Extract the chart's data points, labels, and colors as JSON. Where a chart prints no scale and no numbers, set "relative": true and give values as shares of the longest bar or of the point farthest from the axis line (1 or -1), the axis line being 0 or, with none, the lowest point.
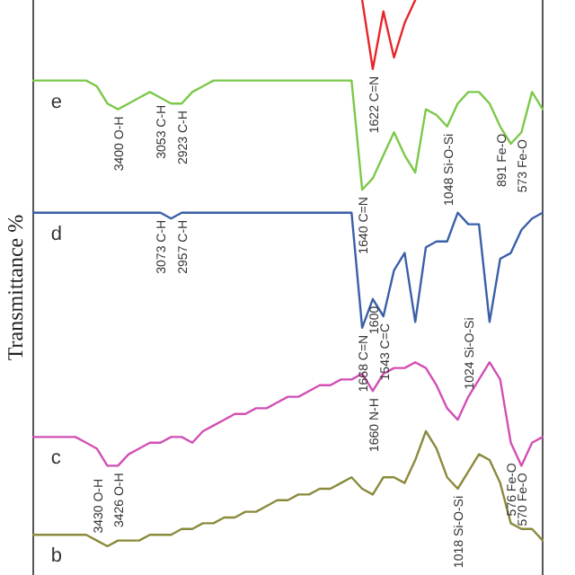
{
  "chart_data": {
    "type": "line",
    "ylabel": "Transmittance %",
    "relative": true,
    "grid": false,
    "legend": false,
    "marker": "none",
    "line_style": "solid",
    "categories": [
      null,
      null,
      null,
      null,
      null,
      null,
      null,
      null,
      null,
      null,
      null,
      null,
      null,
      null,
      null,
      null,
      null,
      null,
      null,
      null,
      null,
      null,
      null,
      null,
      null,
      null,
      null,
      null,
      null,
      null,
      null,
      null,
      null,
      null,
      null,
      null,
      null,
      null,
      null,
      null,
      null,
      null,
      null,
      null,
      null,
      null,
      null,
      null,
      null
    ],
    "series": [
      {
        "color": "#e8262a",
        "values": [
          null,
          null,
          null,
          null,
          null,
          null,
          null,
          null,
          null,
          null,
          null,
          null,
          null,
          null,
          null,
          null,
          null,
          null,
          null,
          null,
          null,
          null,
          null,
          null,
          null,
          null,
          null,
          null,
          null,
          null,
          null,
          1.0,
          0.88,
          0.98,
          0.9,
          0.96,
          1.0,
          null,
          null,
          null,
          null,
          null,
          null,
          null,
          null,
          null,
          null,
          null,
          null
        ]
      },
      {
        "name": "e",
        "color": "#7cc84a",
        "values": [
          0.86,
          0.86,
          0.86,
          0.86,
          0.86,
          0.86,
          0.85,
          0.82,
          0.81,
          0.82,
          0.83,
          0.84,
          0.83,
          0.82,
          0.82,
          0.84,
          0.85,
          0.86,
          0.86,
          0.86,
          0.86,
          0.86,
          0.86,
          0.86,
          0.86,
          0.86,
          0.86,
          0.86,
          0.86,
          0.86,
          0.86,
          0.67,
          0.69,
          0.73,
          0.77,
          0.73,
          0.7,
          0.81,
          0.8,
          0.78,
          0.82,
          0.84,
          0.84,
          0.82,
          0.78,
          0.75,
          0.77,
          0.84,
          0.81
        ]
      },
      {
        "name": "d",
        "color": "#3a5fa8",
        "values": [
          0.63,
          0.63,
          0.63,
          0.63,
          0.63,
          0.63,
          0.63,
          0.63,
          0.63,
          0.63,
          0.63,
          0.63,
          0.63,
          0.62,
          0.63,
          0.63,
          0.63,
          0.63,
          0.63,
          0.63,
          0.63,
          0.63,
          0.63,
          0.63,
          0.63,
          0.63,
          0.63,
          0.63,
          0.63,
          0.63,
          0.63,
          0.43,
          0.48,
          0.45,
          0.53,
          0.56,
          0.44,
          0.57,
          0.58,
          0.58,
          0.63,
          0.61,
          0.61,
          0.44,
          0.55,
          0.56,
          0.6,
          0.62,
          0.63
        ]
      },
      {
        "name": "c",
        "color": "#d24fb4",
        "values": [
          0.24,
          0.24,
          0.24,
          0.24,
          0.24,
          0.23,
          0.22,
          0.19,
          0.19,
          0.21,
          0.22,
          0.23,
          0.23,
          0.24,
          0.24,
          0.23,
          0.25,
          0.26,
          0.27,
          0.28,
          0.28,
          0.29,
          0.29,
          0.3,
          0.31,
          0.31,
          0.32,
          0.33,
          0.33,
          0.34,
          0.34,
          0.35,
          0.32,
          0.35,
          0.36,
          0.36,
          0.37,
          0.36,
          0.33,
          0.29,
          0.27,
          0.31,
          0.34,
          0.37,
          0.34,
          0.23,
          0.19,
          0.23,
          0.24
        ]
      },
      {
        "name": "b",
        "color": "#8a8a3c",
        "values": [
          0.07,
          0.07,
          0.07,
          0.07,
          0.07,
          0.07,
          0.06,
          0.05,
          0.06,
          0.06,
          0.06,
          0.07,
          0.07,
          0.07,
          0.08,
          0.08,
          0.09,
          0.09,
          0.1,
          0.1,
          0.11,
          0.11,
          0.12,
          0.13,
          0.13,
          0.14,
          0.14,
          0.15,
          0.15,
          0.16,
          0.17,
          0.15,
          0.14,
          0.17,
          0.17,
          0.16,
          0.2,
          0.25,
          0.22,
          0.17,
          0.15,
          0.18,
          0.21,
          0.2,
          0.16,
          0.09,
          0.08,
          0.08,
          0.06
        ]
      }
    ],
    "annotations": [
      "1622 C=N",
      "3400 O-H",
      "3053 C-H",
      "2923 C-H",
      "1640 C=N",
      "1048 Si-O-Si",
      "891 Fe-O",
      "573 Fe-O",
      "3073 C-H",
      "2957 C-H",
      "1668 C=N",
      "1600",
      "1543 C=C",
      "3426 O-H",
      "1660 N-H",
      "1024 Si-O-Si",
      "570 Fe-O",
      "3430 O-H",
      "1018 Si-O-Si",
      "576 Fe-O"
    ]
  }
}
